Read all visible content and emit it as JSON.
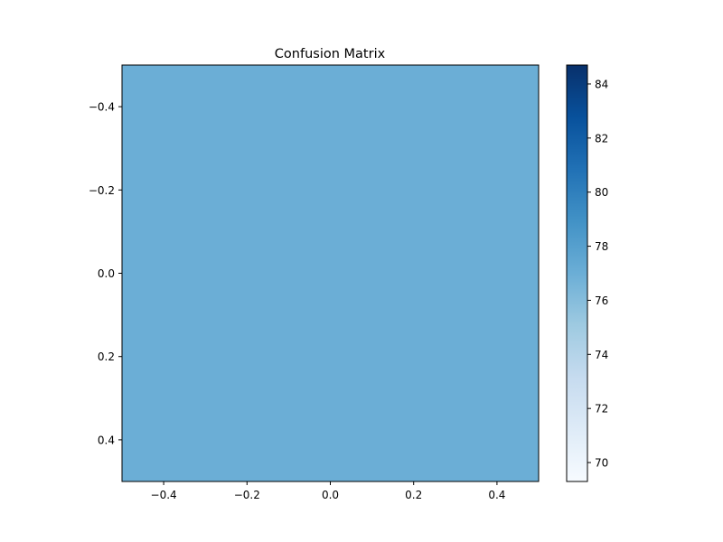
{
  "chart_data": {
    "type": "heatmap",
    "title": "Confusion Matrix",
    "xlabel": "",
    "ylabel": "",
    "matrix": [
      [
        77.0
      ]
    ],
    "xlim": [
      -0.5,
      0.5
    ],
    "ylim": [
      -0.5,
      0.5
    ],
    "y_inverted": true,
    "x_ticks": [
      -0.4,
      -0.2,
      0.0,
      0.2,
      0.4
    ],
    "x_tick_labels": [
      "−0.4",
      "−0.2",
      "0.0",
      "0.2",
      "0.4"
    ],
    "y_ticks": [
      -0.4,
      -0.2,
      0.0,
      0.2,
      0.4
    ],
    "y_tick_labels": [
      "−0.4",
      "−0.2",
      "0.0",
      "0.2",
      "0.4"
    ],
    "colormap": "Blues",
    "cell_color": "#6baed6",
    "colorbar": {
      "range": [
        69.3,
        84.7
      ],
      "ticks": [
        70,
        72,
        74,
        76,
        78,
        80,
        82,
        84
      ],
      "tick_labels": [
        "70",
        "72",
        "74",
        "76",
        "78",
        "80",
        "82",
        "84"
      ]
    },
    "grid": false
  }
}
